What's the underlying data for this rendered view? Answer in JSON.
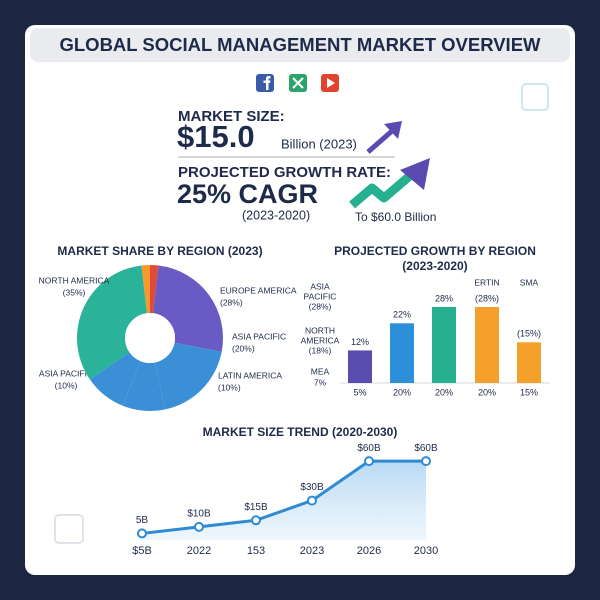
{
  "header": {
    "title": "GLOBAL SOCIAL MANAGEMENT MARKET OVERVIEW"
  },
  "stats": {
    "market_size_label": "MARKET SIZE:",
    "market_size_value": "$15.0",
    "market_size_unit": "Billion (2023)",
    "growth_label": "PROJECTED GROWTH RATE:",
    "growth_value": "25% CAGR",
    "growth_period": "(2023-2020)",
    "growth_target": "To $60.0 Billion"
  },
  "chart_data": [
    {
      "type": "pie",
      "title": "MARKET SHARE BY REGION (2023)",
      "categories": [
        null,
        "EUROPE AMERICA",
        "ASIA PACIFIC",
        "LATIN AMERICA",
        "ASIA PACIFIC",
        "NORTH AMERICA",
        null
      ],
      "values": [
        2,
        28,
        20,
        10,
        10,
        35,
        2
      ],
      "value_labels": [
        null,
        "(28%)",
        "(20%)",
        "(10%)",
        "(10%)",
        "(35%)",
        null
      ],
      "colors": [
        "#e04a3a",
        "#6a5bc4",
        "#3a8fd6",
        "#3a8fd6",
        "#3a8fd6",
        "#2bb39a",
        "#f39a2a"
      ],
      "donut": true
    },
    {
      "type": "bar",
      "title": "PROJECTED GROWTH BY REGION",
      "subtitle": "(2023-2020)",
      "categories": [
        "5%",
        "20%",
        "20%",
        "20%",
        "15%"
      ],
      "values": [
        12,
        22,
        28,
        28,
        15
      ],
      "value_labels": [
        "12%",
        "22%",
        "28%",
        "(28%)",
        "(15%)"
      ],
      "colors": [
        "#5b4db0",
        "#2d8fd8",
        "#27b08f",
        "#f5a02a",
        "#f5a02a"
      ],
      "ylim": [
        0,
        35
      ],
      "annotations": [
        "ASIA",
        "PACIFIC",
        "(28%)",
        "NORTH",
        "AMERICA",
        "(18%)",
        "MEA",
        "7%",
        "ERTIN",
        "SMA"
      ]
    },
    {
      "type": "line",
      "title": "MARKET SIZE TREND (2020-2030)",
      "categories": [
        "$5B",
        "2022",
        "153",
        "2023",
        "2026",
        "2030"
      ],
      "values": [
        5,
        10,
        15,
        30,
        60,
        60
      ],
      "value_labels": [
        "5B",
        "$10B",
        "$15B",
        "$30B",
        "$60B",
        "$60B"
      ],
      "color": "#2f8ad4",
      "ylim": [
        0,
        70
      ]
    }
  ]
}
